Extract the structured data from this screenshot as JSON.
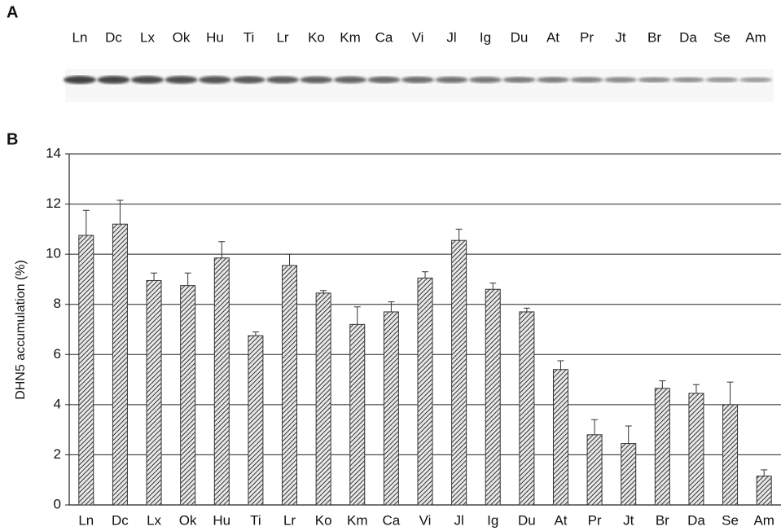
{
  "blot": {
    "panel_label": "A",
    "lanes": [
      "Ln",
      "Dc",
      "Lx",
      "Ok",
      "Hu",
      "Ti",
      "Lr",
      "Ko",
      "Km",
      "Ca",
      "Vi",
      "Jl",
      "Ig",
      "Du",
      "At",
      "Pr",
      "Jt",
      "Br",
      "Da",
      "Se",
      "Am"
    ]
  },
  "chart_data": {
    "type": "bar",
    "panel_label": "B",
    "ylabel": "DHN5 accumulation (%)",
    "categories": [
      "Ln",
      "Dc",
      "Lx",
      "Ok",
      "Hu",
      "Ti",
      "Lr",
      "Ko",
      "Km",
      "Ca",
      "Vi",
      "Jl",
      "Ig",
      "Du",
      "At",
      "Pr",
      "Jt",
      "Br",
      "Da",
      "Se",
      "Am"
    ],
    "values": [
      10.75,
      11.2,
      8.95,
      8.75,
      9.85,
      6.75,
      9.55,
      8.45,
      7.2,
      7.7,
      9.05,
      10.55,
      8.6,
      7.7,
      5.4,
      2.8,
      2.45,
      4.65,
      4.45,
      4.0,
      1.15
    ],
    "errors": [
      1.0,
      0.95,
      0.3,
      0.5,
      0.65,
      0.15,
      0.45,
      0.1,
      0.7,
      0.4,
      0.25,
      0.45,
      0.25,
      0.15,
      0.35,
      0.6,
      0.7,
      0.3,
      0.35,
      0.9,
      0.25
    ],
    "color": "#333333",
    "ylim": [
      0,
      14
    ],
    "yticks": [
      0,
      2,
      4,
      6,
      8,
      10,
      12,
      14
    ],
    "grid": true
  }
}
